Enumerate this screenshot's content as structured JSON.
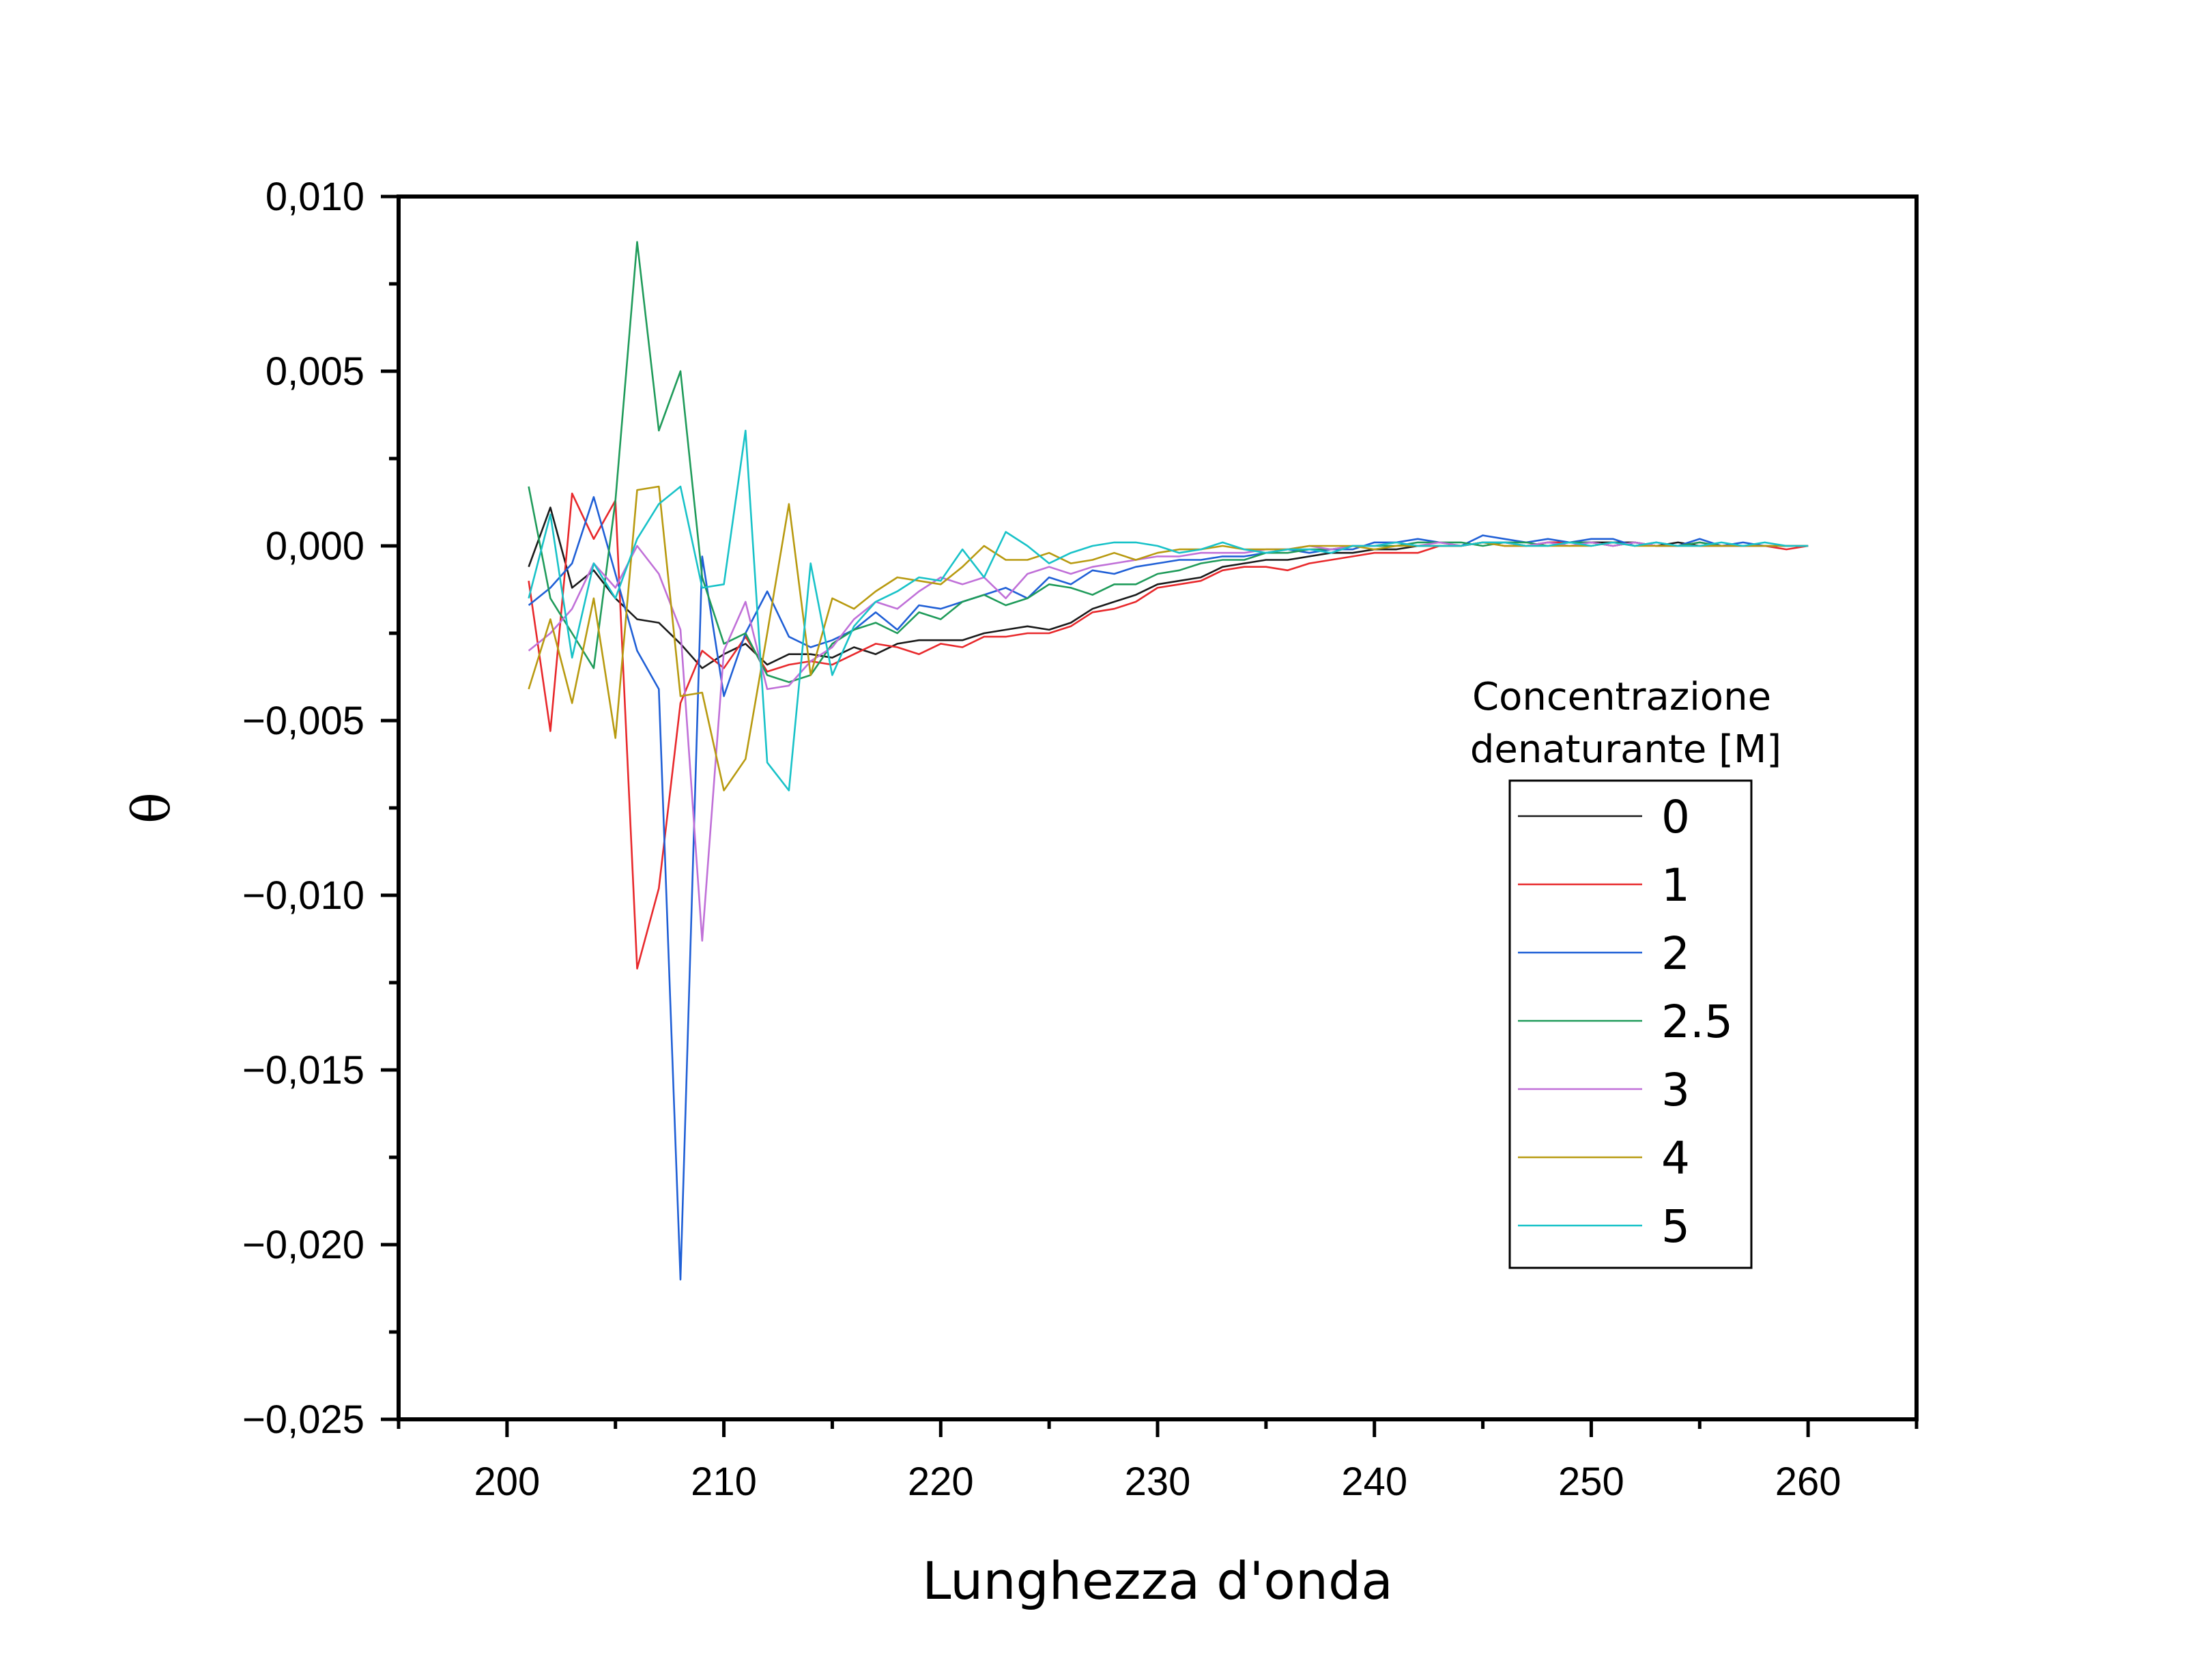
{
  "chart_data": {
    "type": "line",
    "title": "",
    "xlabel": "Lunghezza d'onda",
    "ylabel": "θ",
    "xlim": [
      195,
      265
    ],
    "ylim": [
      -0.025,
      0.01
    ],
    "x_ticks": [
      200,
      210,
      220,
      230,
      240,
      250,
      260
    ],
    "x_tick_labels": [
      "200",
      "210",
      "220",
      "230",
      "240",
      "250",
      "260"
    ],
    "y_ticks": [
      0.01,
      0.005,
      0.0,
      -0.005,
      -0.01,
      -0.015,
      -0.02,
      -0.025
    ],
    "y_tick_labels": [
      "0,010",
      "0,005",
      "0,000",
      "−0,005",
      "−0,010",
      "−0,015",
      "−0,020",
      "−0,025"
    ],
    "grid": false,
    "legend": {
      "title_line1": "Concentrazione",
      "title_line2": "denaturante [M]",
      "placement": "right"
    },
    "x": [
      201,
      202,
      203,
      204,
      205,
      206,
      207,
      208,
      209,
      210,
      211,
      212,
      213,
      214,
      215,
      216,
      217,
      218,
      219,
      220,
      221,
      222,
      223,
      224,
      225,
      226,
      227,
      228,
      229,
      230,
      231,
      232,
      233,
      234,
      235,
      236,
      237,
      238,
      239,
      240,
      241,
      242,
      243,
      244,
      245,
      246,
      247,
      248,
      249,
      250,
      251,
      252,
      253,
      254,
      255,
      256,
      257,
      258,
      259,
      260
    ],
    "series": [
      {
        "name": "0",
        "color": "#1a1a1a",
        "values": [
          -0.0006,
          0.0011,
          -0.0012,
          -0.0007,
          -0.0015,
          -0.0021,
          -0.0022,
          -0.0028,
          -0.0035,
          -0.0031,
          -0.0028,
          -0.0034,
          -0.0031,
          -0.0031,
          -0.0032,
          -0.0029,
          -0.0031,
          -0.0028,
          -0.0027,
          -0.0027,
          -0.0027,
          -0.0025,
          -0.0024,
          -0.0023,
          -0.0024,
          -0.0022,
          -0.0018,
          -0.0016,
          -0.0014,
          -0.0011,
          -0.001,
          -0.0009,
          -0.0006,
          -0.0005,
          -0.0004,
          -0.0004,
          -0.0003,
          -0.0002,
          -0.0002,
          -0.0001,
          -0.0001,
          0.0,
          0.0,
          0.0,
          0.0001,
          0.0001,
          0.0,
          0.0001,
          0.0001,
          0.0001,
          0.0001,
          0.0001,
          0.0,
          0.0001,
          0.0,
          0.0,
          0.0,
          0.0,
          0.0,
          0.0
        ]
      },
      {
        "name": "1",
        "color": "#e8282b",
        "values": [
          -0.001,
          -0.0053,
          0.0015,
          0.0002,
          0.0013,
          -0.0121,
          -0.0098,
          -0.0045,
          -0.003,
          -0.0035,
          -0.0026,
          -0.0036,
          -0.0034,
          -0.0033,
          -0.0034,
          -0.0031,
          -0.0028,
          -0.0029,
          -0.0031,
          -0.0028,
          -0.0029,
          -0.0026,
          -0.0026,
          -0.0025,
          -0.0025,
          -0.0023,
          -0.0019,
          -0.0018,
          -0.0016,
          -0.0012,
          -0.0011,
          -0.001,
          -0.0007,
          -0.0006,
          -0.0006,
          -0.0007,
          -0.0005,
          -0.0004,
          -0.0003,
          -0.0002,
          -0.0002,
          -0.0002,
          0.0,
          0.0,
          0.0001,
          0.0,
          0.0,
          0.0001,
          0.0001,
          0.0001,
          0.0,
          0.0001,
          0.0,
          0.0,
          0.0001,
          0.0,
          0.0,
          0.0,
          -0.0001,
          0.0
        ]
      },
      {
        "name": "2",
        "color": "#1f5fd6",
        "values": [
          -0.0017,
          -0.0012,
          -0.0005,
          0.0014,
          -0.0008,
          -0.003,
          -0.0041,
          -0.021,
          -0.0003,
          -0.0043,
          -0.0025,
          -0.0013,
          -0.0026,
          -0.0029,
          -0.0027,
          -0.0024,
          -0.0019,
          -0.0024,
          -0.0017,
          -0.0018,
          -0.0016,
          -0.0014,
          -0.0012,
          -0.0015,
          -0.0009,
          -0.0011,
          -0.0007,
          -0.0008,
          -0.0006,
          -0.0005,
          -0.0004,
          -0.0004,
          -0.0003,
          -0.0003,
          -0.0002,
          -0.0001,
          -0.0002,
          -0.0001,
          -0.0001,
          0.0001,
          0.0001,
          0.0002,
          0.0001,
          0.0,
          0.0003,
          0.0002,
          0.0001,
          0.0002,
          0.0001,
          0.0002,
          0.0002,
          0.0,
          0.0001,
          0.0,
          0.0002,
          0.0,
          0.0001,
          0.0,
          0.0,
          0.0
        ]
      },
      {
        "name": "2.5",
        "color": "#1f9b5a",
        "values": [
          0.0017,
          -0.0015,
          -0.0025,
          -0.0035,
          0.0013,
          0.0087,
          0.0033,
          0.005,
          -0.0009,
          -0.0028,
          -0.0025,
          -0.0037,
          -0.0039,
          -0.0037,
          -0.0028,
          -0.0024,
          -0.0022,
          -0.0025,
          -0.0019,
          -0.0021,
          -0.0016,
          -0.0014,
          -0.0017,
          -0.0015,
          -0.0011,
          -0.0012,
          -0.0014,
          -0.0011,
          -0.0011,
          -0.0008,
          -0.0007,
          -0.0005,
          -0.0004,
          -0.0004,
          -0.0002,
          -0.0002,
          -0.0001,
          -0.0001,
          0.0,
          0.0,
          0.0,
          0.0001,
          0.0001,
          0.0001,
          0.0,
          0.0001,
          0.0001,
          0.0,
          0.0001,
          0.0001,
          0.0,
          0.0001,
          0.0,
          0.0,
          0.0001,
          0.0,
          0.0,
          0.0,
          0.0,
          0.0
        ]
      },
      {
        "name": "3",
        "color": "#c070d8",
        "values": [
          -0.003,
          -0.0025,
          -0.0018,
          -0.0005,
          -0.0012,
          0.0,
          -0.0008,
          -0.0024,
          -0.0113,
          -0.003,
          -0.0016,
          -0.0041,
          -0.004,
          -0.0033,
          -0.0029,
          -0.0021,
          -0.0016,
          -0.0018,
          -0.0013,
          -0.0009,
          -0.0011,
          -0.0009,
          -0.0015,
          -0.0008,
          -0.0006,
          -0.0008,
          -0.0006,
          -0.0005,
          -0.0004,
          -0.0003,
          -0.0003,
          -0.0002,
          -0.0002,
          -0.0002,
          -0.0001,
          -0.0001,
          0.0,
          -0.0001,
          0.0,
          0.0,
          0.0001,
          0.0,
          0.0001,
          0.0,
          0.0001,
          0.0001,
          0.0,
          0.0001,
          0.0,
          0.0001,
          0.0,
          0.0001,
          0.0,
          0.0,
          0.0,
          0.0,
          0.0,
          0.0,
          0.0,
          0.0
        ]
      },
      {
        "name": "4",
        "color": "#b89a10",
        "values": [
          -0.0041,
          -0.0021,
          -0.0045,
          -0.0015,
          -0.0055,
          0.0016,
          0.0017,
          -0.0043,
          -0.0042,
          -0.007,
          -0.0061,
          -0.0025,
          0.0012,
          -0.0037,
          -0.0015,
          -0.0018,
          -0.0013,
          -0.0009,
          -0.001,
          -0.0011,
          -0.0006,
          0.0,
          -0.0004,
          -0.0004,
          -0.0002,
          -0.0005,
          -0.0004,
          -0.0002,
          -0.0004,
          -0.0002,
          -0.0001,
          -0.0001,
          0.0,
          -0.0001,
          -0.0001,
          -0.0001,
          0.0,
          0.0,
          0.0,
          -0.0001,
          0.0,
          0.0,
          0.0,
          0.0,
          0.0001,
          0.0,
          0.0,
          0.0,
          0.0,
          0.0,
          0.0001,
          0.0,
          0.0,
          0.0,
          0.0,
          0.0,
          0.0,
          0.0,
          0.0,
          0.0
        ]
      },
      {
        "name": "5",
        "color": "#18c2c8",
        "values": [
          -0.0015,
          0.0009,
          -0.0032,
          -0.0005,
          -0.0015,
          0.0002,
          0.0012,
          0.0017,
          -0.0012,
          -0.0011,
          0.0033,
          -0.0062,
          -0.007,
          -0.0005,
          -0.0037,
          -0.0023,
          -0.0016,
          -0.0013,
          -0.0009,
          -0.001,
          -0.0001,
          -0.0009,
          0.0004,
          0.0,
          -0.0005,
          -0.0002,
          0.0,
          0.0001,
          0.0001,
          0.0,
          -0.0002,
          -0.0001,
          0.0001,
          -0.0001,
          -0.0002,
          -0.0001,
          -0.0001,
          -0.0002,
          0.0,
          0.0,
          0.0001,
          0.0,
          0.0,
          0.0,
          0.0001,
          0.0001,
          0.0,
          0.0,
          0.0001,
          0.0,
          0.0001,
          0.0,
          0.0001,
          0.0,
          0.0,
          0.0001,
          0.0,
          0.0001,
          0.0,
          0.0
        ]
      }
    ]
  }
}
